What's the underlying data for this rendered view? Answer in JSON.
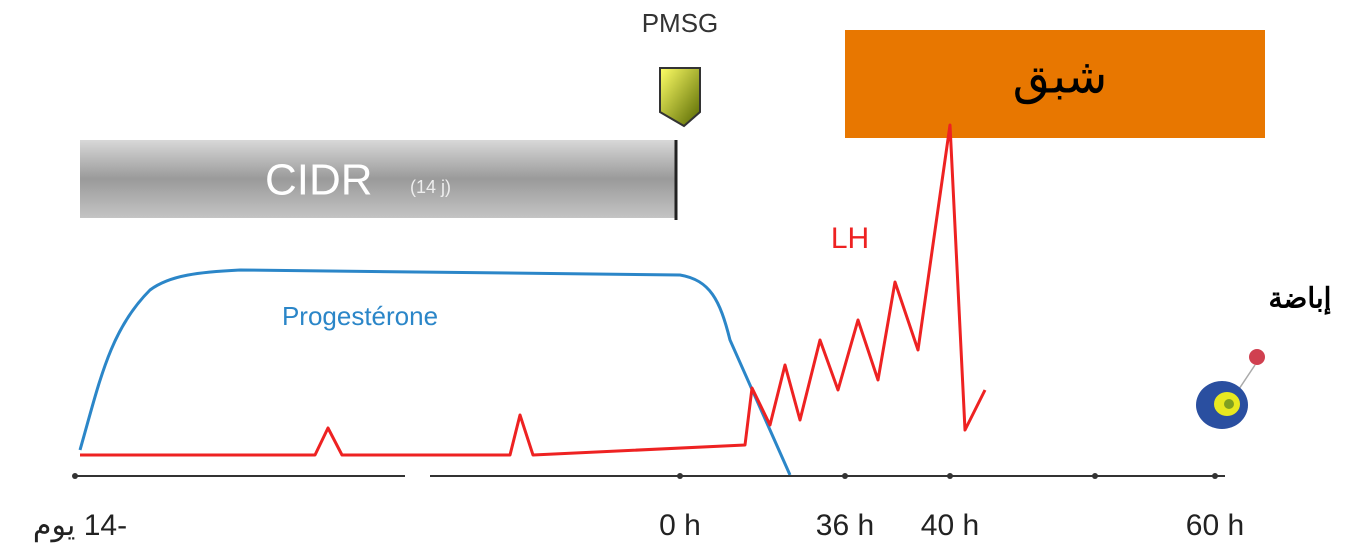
{
  "pmsg": "PMSG",
  "cidr": {
    "label": "CIDR",
    "duration": "(14 j)"
  },
  "estrus": "شبق",
  "lh": "LH",
  "progesterone": "Progestérone",
  "ovulation": "إباضة",
  "axis": {
    "labels": [
      "-14 يوم",
      "0 h",
      "36 h",
      "40 h",
      "60 h"
    ]
  }
}
